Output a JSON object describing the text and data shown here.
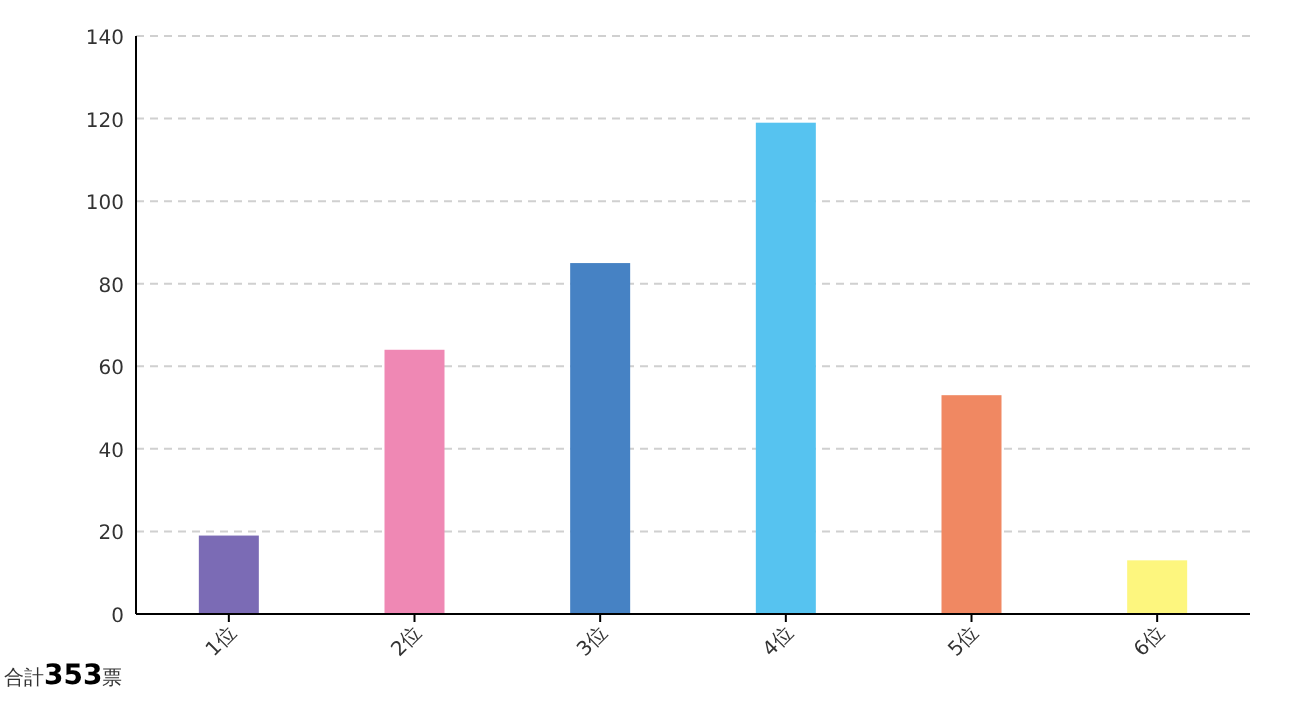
{
  "chart_data": {
    "type": "bar",
    "categories": [
      "1位",
      "2位",
      "3位",
      "4位",
      "5位",
      "6位"
    ],
    "values": [
      19,
      64,
      85,
      119,
      53,
      13
    ],
    "colors": [
      "#7b6bb5",
      "#ef88b4",
      "#4682c4",
      "#56c3f0",
      "#f08862",
      "#fdf67e"
    ],
    "ylim": [
      0,
      140
    ],
    "yticks": [
      0,
      20,
      40,
      60,
      80,
      100,
      120,
      140
    ],
    "grid": "y",
    "annotations": [
      "合計353票"
    ]
  }
}
